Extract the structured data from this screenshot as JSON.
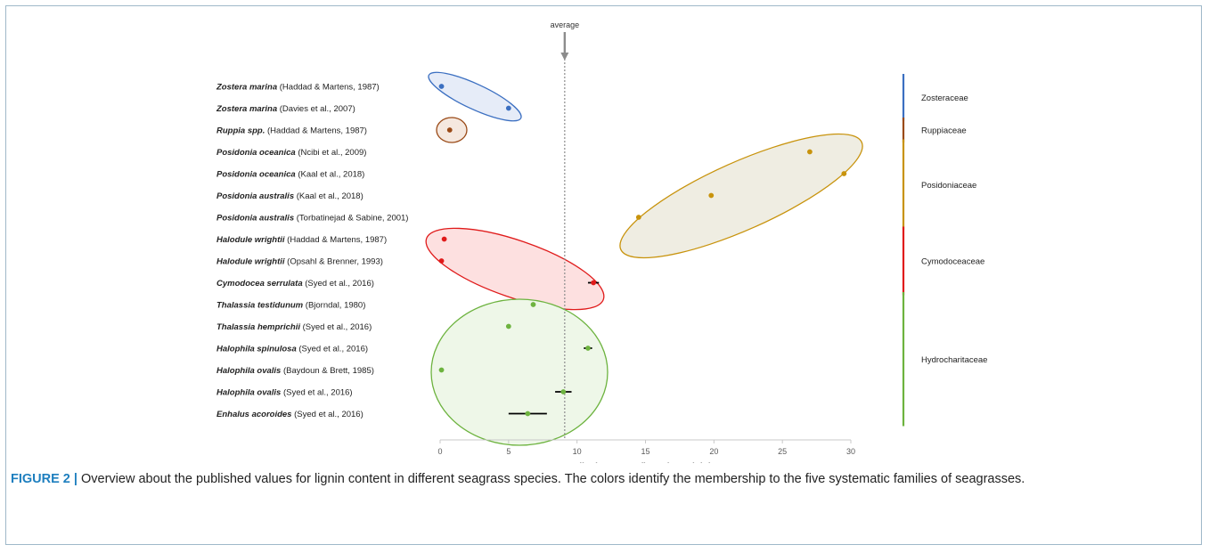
{
  "chart_data": {
    "type": "scatter",
    "xlabel": "lignin content (in % dry weight)",
    "xlim": [
      0,
      30
    ],
    "xticks": [
      0,
      5,
      10,
      15,
      20,
      25,
      30
    ],
    "average": {
      "label": "average",
      "value": 9.1
    },
    "rows": [
      {
        "species": "Zostera marina",
        "ref": " (Haddad & Martens, 1987)",
        "x": 0.1,
        "family": "Zosteraceae"
      },
      {
        "species": "Zostera marina",
        "ref": " (Davies et al., 2007)",
        "x": 5.0,
        "family": "Zosteraceae"
      },
      {
        "species": "Ruppia spp.",
        "ref": " (Haddad & Martens, 1987)",
        "x": 0.7,
        "family": "Ruppiaceae"
      },
      {
        "species": "Posidonia oceanica",
        "ref": " (Ncibi et al., 2009)",
        "x": 27.0,
        "family": "Posidoniaceae"
      },
      {
        "species": "Posidonia oceanica",
        "ref": " (Kaal et al., 2018)",
        "x": 29.5,
        "family": "Posidoniaceae"
      },
      {
        "species": "Posidonia australis",
        "ref": " (Kaal et al., 2018)",
        "x": 19.8,
        "family": "Posidoniaceae"
      },
      {
        "species": "Posidonia australis",
        "ref": " (Torbatinejad & Sabine, 2001)",
        "x": 14.5,
        "family": "Posidoniaceae"
      },
      {
        "species": "Halodule wrightii",
        "ref": " (Haddad & Martens, 1987)",
        "x": 0.3,
        "family": "Cymodoceaceae"
      },
      {
        "species": "Halodule wrightii",
        "ref": " (Opsahl & Brenner, 1993)",
        "x": 0.1,
        "family": "Cymodoceaceae"
      },
      {
        "species": "Cymodocea serrulata",
        "ref": " (Syed et al., 2016)",
        "x": 11.2,
        "err": 0.4,
        "family": "Cymodoceaceae"
      },
      {
        "species": "Thalassia testidunum",
        "ref": " (Bjorndal, 1980)",
        "x": 6.8,
        "family": "Hydrocharitaceae"
      },
      {
        "species": "Thalassia hemprichii",
        "ref": " (Syed et al., 2016)",
        "x": 5.0,
        "family": "Hydrocharitaceae"
      },
      {
        "species": "Halophila spinulosa",
        "ref": " (Syed et al., 2016)",
        "x": 10.8,
        "err": 0.3,
        "family": "Hydrocharitaceae"
      },
      {
        "species": "Halophila ovalis",
        "ref": " (Baydoun & Brett, 1985)",
        "x": 0.1,
        "family": "Hydrocharitaceae"
      },
      {
        "species": "Halophila ovalis",
        "ref": " (Syed et al., 2016)",
        "x": 9.0,
        "err": 0.6,
        "family": "Hydrocharitaceae"
      },
      {
        "species": "Enhalus acoroides",
        "ref": " (Syed et al., 2016)",
        "x": 6.4,
        "err": 1.4,
        "family": "Hydrocharitaceae"
      }
    ],
    "families": [
      {
        "name": "Zosteraceae",
        "color": "#3b6fc1",
        "fill": "#e6ecf8",
        "first_row": 0,
        "last_row": 1
      },
      {
        "name": "Ruppiaceae",
        "color": "#9a4a17",
        "fill": "#f5e8df",
        "first_row": 2,
        "last_row": 2
      },
      {
        "name": "Posidoniaceae",
        "color": "#c8930c",
        "fill": "#efede2",
        "first_row": 3,
        "last_row": 6
      },
      {
        "name": "Cymodoceaceae",
        "color": "#e01b1b",
        "fill": "#fde0e0",
        "first_row": 7,
        "last_row": 9
      },
      {
        "name": "Hydrocharitaceae",
        "color": "#6db33f",
        "fill": "#eef7e8",
        "first_row": 10,
        "last_row": 15
      }
    ]
  },
  "caption": {
    "lead": "FIGURE 2 |",
    "text": " Overview about the published values for lignin content in different seagrass species. The colors identify the membership to the five systematic families of seagrasses."
  }
}
